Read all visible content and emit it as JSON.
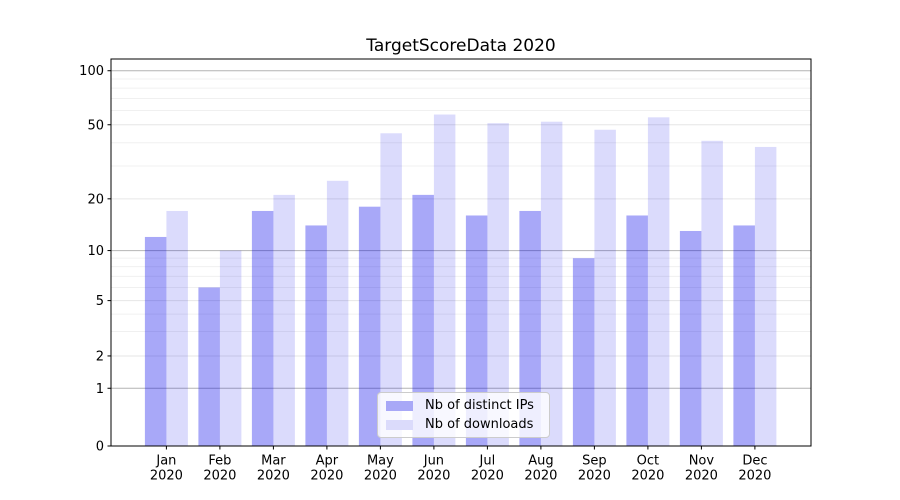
{
  "chart_data": {
    "type": "bar",
    "title": "TargetScoreData 2020",
    "categories": [
      "Jan",
      "Feb",
      "Mar",
      "Apr",
      "May",
      "Jun",
      "Jul",
      "Aug",
      "Sep",
      "Oct",
      "Nov",
      "Dec"
    ],
    "x_tick_year": "2020",
    "series": [
      {
        "name": "Nb of distinct IPs",
        "color": "#a8a8f7",
        "fill": "rgba(0,0,235,0.34)",
        "values": [
          12,
          6,
          17,
          14,
          18,
          21,
          16,
          17,
          9,
          16,
          13,
          14
        ]
      },
      {
        "name": "Nb of downloads",
        "color": "#dbdbfb",
        "fill": "rgba(0,0,235,0.14)",
        "values": [
          17,
          10,
          21,
          25,
          45,
          57,
          51,
          52,
          47,
          55,
          41,
          38
        ]
      }
    ],
    "yscale": "symlog",
    "y_ticks": [
      0,
      1,
      2,
      5,
      10,
      20,
      50,
      100
    ],
    "y_major_gridline_values": [
      1,
      10,
      100
    ],
    "y_minor_gridlines": [
      3,
      4,
      6,
      7,
      8,
      9,
      30,
      40,
      60,
      70,
      80,
      90
    ],
    "ylim": [
      0,
      115
    ],
    "xlabel": "",
    "ylabel": "",
    "grid": true,
    "legend_position": "lower center",
    "colors": {
      "axis": "#000000",
      "major_grid": "#b4b4b4",
      "labeled_minor_grid": "#e6e6e6",
      "minor_grid": "#f0f0f0",
      "text": "#000000"
    }
  }
}
